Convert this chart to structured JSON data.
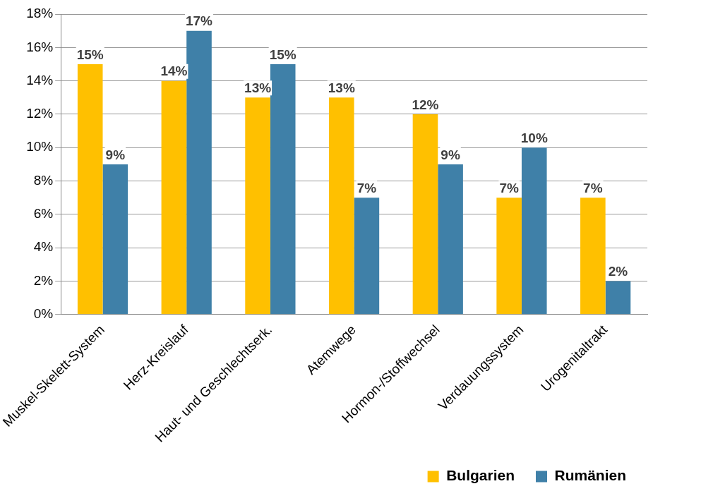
{
  "chart_data": {
    "type": "bar",
    "categories": [
      "Muskel-Skelett-System",
      "Herz-Kreislauf",
      "Haut- und Geschlechtserk.",
      "Atemwege",
      "Hormon-/Stoffwechsel",
      "Verdauungssystem",
      "Urogenitaltrakt"
    ],
    "series": [
      {
        "name": "Bulgarien",
        "color": "#ffc000",
        "values": [
          15,
          14,
          13,
          13,
          12,
          7,
          7
        ],
        "value_labels": [
          "15%",
          "14%",
          "13%",
          "13%",
          "12%",
          "7%",
          "7%"
        ]
      },
      {
        "name": "Rumänien",
        "color": "#3f80a8",
        "values": [
          9,
          17,
          15,
          7,
          9,
          10,
          2
        ],
        "value_labels": [
          "9%",
          "17%",
          "15%",
          "7%",
          "9%",
          "10%",
          "2%"
        ]
      }
    ],
    "ylim": [
      0,
      18
    ],
    "yticks": [
      {
        "value": 0,
        "label": "0%"
      },
      {
        "value": 2,
        "label": "2%"
      },
      {
        "value": 4,
        "label": "4%"
      },
      {
        "value": 6,
        "label": "6%"
      },
      {
        "value": 8,
        "label": "8%"
      },
      {
        "value": 10,
        "label": "10%"
      },
      {
        "value": 12,
        "label": "12%"
      },
      {
        "value": 14,
        "label": "14%"
      },
      {
        "value": 16,
        "label": "16%"
      },
      {
        "value": 18,
        "label": "18%"
      }
    ],
    "grid": "y",
    "legend": "bottom right"
  }
}
